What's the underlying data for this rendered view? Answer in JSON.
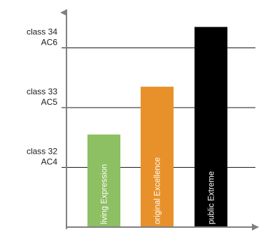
{
  "chart_data": {
    "type": "bar",
    "title": "",
    "xlabel": "",
    "ylabel": "",
    "y_levels": [
      {
        "label_line1": "class 32",
        "label_line2": "AC4",
        "value": 1
      },
      {
        "label_line1": "class 33",
        "label_line2": "AC5",
        "value": 2
      },
      {
        "label_line1": "class 34",
        "label_line2": "AC6",
        "value": 3
      }
    ],
    "ylim": [
      0,
      3.5
    ],
    "grid": true,
    "bars": [
      {
        "label": "living Expression",
        "value": 1.55,
        "color": "#8cc063"
      },
      {
        "label": "original Excellence",
        "value": 2.35,
        "color": "#e8912a"
      },
      {
        "label": "public Extreme",
        "value": 3.35,
        "color": "#000000"
      }
    ],
    "axis_color": "#808080",
    "grid_color": "#1a1a1a"
  }
}
